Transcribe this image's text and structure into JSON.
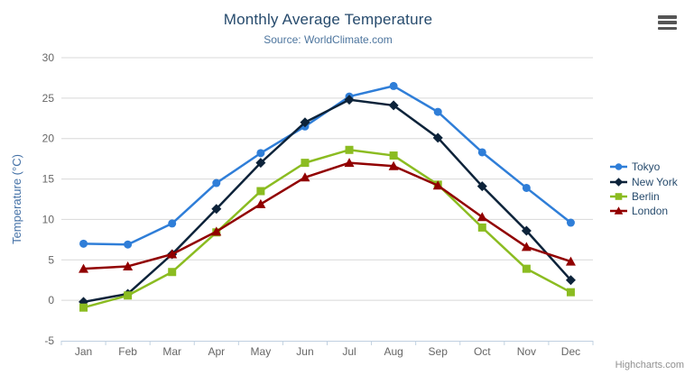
{
  "header": {
    "title": "Monthly Average Temperature",
    "subtitle": "Source: WorldClimate.com"
  },
  "credits_label": "Highcharts.com",
  "export_menu": {
    "icon": "hamburger-menu-icon"
  },
  "colors": {
    "title_text": "#274b6d",
    "subtitle_text": "#4d759e",
    "axis_label_text": "#666666",
    "y_axis_title_text": "#4572a7",
    "gridline": "#d8d8d8",
    "axis_line": "#c0d0e0",
    "legend_text": "#274b6d",
    "credits_text": "#909090"
  },
  "chart_data": {
    "type": "line",
    "title": "Monthly Average Temperature",
    "subtitle": "Source: WorldClimate.com",
    "xlabel": "",
    "ylabel": "Temperature (°C)",
    "categories": [
      "Jan",
      "Feb",
      "Mar",
      "Apr",
      "May",
      "Jun",
      "Jul",
      "Aug",
      "Sep",
      "Oct",
      "Nov",
      "Dec"
    ],
    "ylim": [
      -5,
      30
    ],
    "ytick_step": 5,
    "grid": true,
    "legend_position": "right",
    "series": [
      {
        "name": "Tokyo",
        "color": "#2f7ed8",
        "marker": "circle",
        "values": [
          7.0,
          6.9,
          9.5,
          14.5,
          18.2,
          21.5,
          25.2,
          26.5,
          23.3,
          18.3,
          13.9,
          9.6
        ]
      },
      {
        "name": "New York",
        "color": "#0d233a",
        "marker": "diamond",
        "values": [
          -0.2,
          0.8,
          5.7,
          11.3,
          17.0,
          22.0,
          24.8,
          24.1,
          20.1,
          14.1,
          8.6,
          2.5
        ]
      },
      {
        "name": "Berlin",
        "color": "#8bbc21",
        "marker": "square",
        "values": [
          -0.9,
          0.6,
          3.5,
          8.4,
          13.5,
          17.0,
          18.6,
          17.9,
          14.3,
          9.0,
          3.9,
          1.0
        ]
      },
      {
        "name": "London",
        "color": "#910000",
        "marker": "triangle",
        "values": [
          3.9,
          4.2,
          5.7,
          8.5,
          11.9,
          15.2,
          17.0,
          16.6,
          14.2,
          10.3,
          6.6,
          4.8
        ]
      }
    ]
  }
}
